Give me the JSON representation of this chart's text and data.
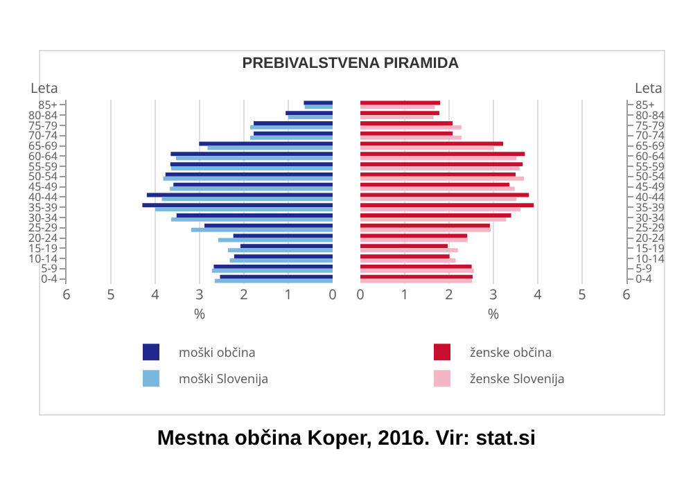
{
  "chart_data": [
    {
      "type": "bar",
      "title": "PREBIVALSTVENA PIRAMIDA",
      "orientation": "horizontal",
      "xlabel": "%",
      "ylabel": "Leta",
      "categories": [
        "85+",
        "80-84",
        "75-79",
        "70-74",
        "65-69",
        "60-64",
        "55-59",
        "50-54",
        "45-49",
        "40-44",
        "35-39",
        "30-34",
        "25-29",
        "20-24",
        "15-19",
        "10-14",
        "5-9",
        "0-4"
      ],
      "series": [
        {
          "name": "moški občina",
          "color": "#1f2a8c",
          "values": [
            0.65,
            1.06,
            1.78,
            1.78,
            3.01,
            3.65,
            3.66,
            3.77,
            3.59,
            4.19,
            4.29,
            3.52,
            2.89,
            2.24,
            2.08,
            2.22,
            2.68,
            2.54
          ]
        },
        {
          "name": "moški Slovenija",
          "color": "#7bb8e0",
          "values": [
            0.63,
            1.0,
            1.86,
            1.86,
            2.82,
            3.53,
            3.64,
            3.82,
            3.67,
            3.85,
            4.0,
            3.64,
            3.19,
            2.58,
            2.36,
            2.32,
            2.72,
            2.66
          ]
        }
      ],
      "xlim": [
        6,
        0
      ],
      "xticks": [
        6,
        5,
        4,
        3,
        2,
        1,
        0
      ],
      "grid": "x",
      "legend": "bottom"
    },
    {
      "type": "bar",
      "orientation": "horizontal",
      "xlabel": "%",
      "ylabel": "Leta",
      "categories": [
        "85+",
        "80-84",
        "75-79",
        "70-74",
        "65-69",
        "60-64",
        "55-59",
        "50-54",
        "45-49",
        "40-44",
        "35-39",
        "30-34",
        "25-29",
        "20-24",
        "15-19",
        "10-14",
        "5-9",
        "0-4"
      ],
      "series": [
        {
          "name": "ženske občina",
          "color": "#c8102e",
          "values": [
            1.8,
            1.78,
            2.08,
            2.08,
            3.22,
            3.71,
            3.66,
            3.5,
            3.36,
            3.8,
            3.91,
            3.4,
            2.92,
            2.41,
            1.97,
            2.01,
            2.51,
            2.53
          ]
        },
        {
          "name": "ženske Slovenija",
          "color": "#f4b6c4",
          "values": [
            1.68,
            1.65,
            2.28,
            2.28,
            3.01,
            3.52,
            3.59,
            3.69,
            3.48,
            3.52,
            3.61,
            3.29,
            2.94,
            2.42,
            2.2,
            2.15,
            2.56,
            2.52
          ]
        }
      ],
      "xlim": [
        0,
        6
      ],
      "xticks": [
        0,
        1,
        2,
        3,
        4,
        5,
        6
      ],
      "grid": "x",
      "legend": "bottom",
      "annotations": [
        "Mestna občina Koper, 2016. Vir: stat.si"
      ]
    }
  ]
}
